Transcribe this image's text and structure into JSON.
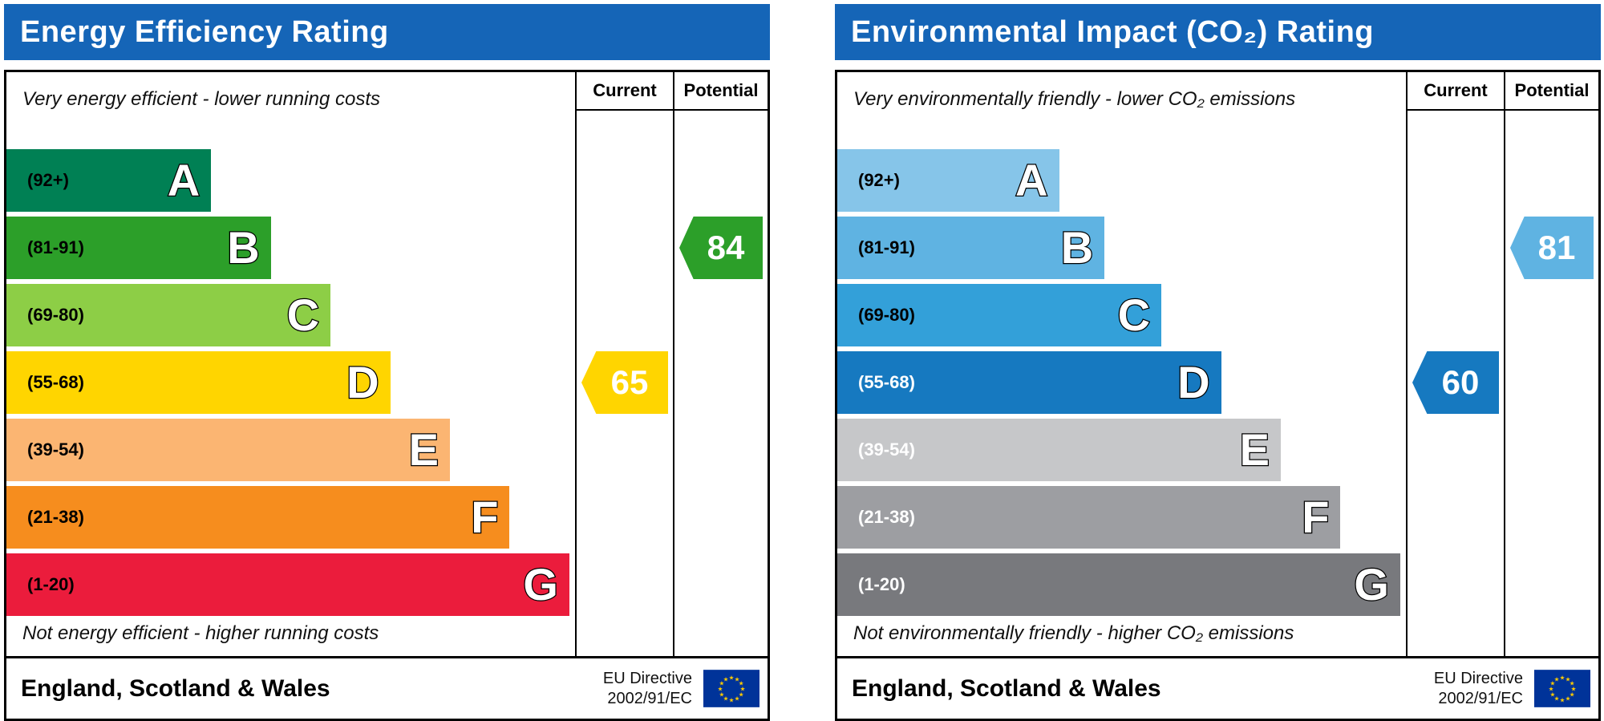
{
  "chart_data": [
    {
      "type": "bar",
      "chart_kind": "epc-rating-scale",
      "title": "Energy Efficiency Rating",
      "header_color": "#1565b7",
      "columns": {
        "current": "Current",
        "potential": "Potential"
      },
      "top_note": "Very energy efficient - lower running costs",
      "bottom_note": "Not energy efficient - higher running costs",
      "bands": [
        {
          "letter": "A",
          "range": "(92+)",
          "color": "#008054",
          "label_color": "#000000",
          "width_pct": 36
        },
        {
          "letter": "B",
          "range": "(81-91)",
          "color": "#2c9f29",
          "label_color": "#000000",
          "width_pct": 46.5
        },
        {
          "letter": "C",
          "range": "(69-80)",
          "color": "#8dce46",
          "label_color": "#000000",
          "width_pct": 57
        },
        {
          "letter": "D",
          "range": "(55-68)",
          "color": "#ffd500",
          "label_color": "#000000",
          "width_pct": 67.5
        },
        {
          "letter": "E",
          "range": "(39-54)",
          "color": "#fbb572",
          "label_color": "#000000",
          "width_pct": 78
        },
        {
          "letter": "F",
          "range": "(21-38)",
          "color": "#f68d1e",
          "label_color": "#000000",
          "width_pct": 88.5
        },
        {
          "letter": "G",
          "range": "(1-20)",
          "color": "#eb1c3c",
          "label_color": "#000000",
          "width_pct": 99
        }
      ],
      "current": {
        "value": 65,
        "band": "D",
        "band_index": 3,
        "color": "#ffd500"
      },
      "potential": {
        "value": 84,
        "band": "B",
        "band_index": 1,
        "color": "#2c9f29"
      },
      "footer_region": "England, Scotland & Wales",
      "directive": [
        "EU Directive",
        "2002/91/EC"
      ]
    },
    {
      "type": "bar",
      "chart_kind": "epc-rating-scale",
      "title": "Environmental Impact (CO₂) Rating",
      "header_color": "#1565b7",
      "columns": {
        "current": "Current",
        "potential": "Potential"
      },
      "top_note": "Very environmentally friendly - lower CO₂ emissions",
      "bottom_note": "Not environmentally friendly - higher CO₂ emissions",
      "bands": [
        {
          "letter": "A",
          "range": "(92+)",
          "color": "#86c5e9",
          "label_color": "#000000",
          "width_pct": 39
        },
        {
          "letter": "B",
          "range": "(81-91)",
          "color": "#5fb3e2",
          "label_color": "#000000",
          "width_pct": 47
        },
        {
          "letter": "C",
          "range": "(69-80)",
          "color": "#33a0d9",
          "label_color": "#000000",
          "width_pct": 57
        },
        {
          "letter": "D",
          "range": "(55-68)",
          "color": "#1679c0",
          "label_color": "#ffffff",
          "width_pct": 67.5
        },
        {
          "letter": "E",
          "range": "(39-54)",
          "color": "#c6c7c9",
          "label_color": "#ffffff",
          "width_pct": 78
        },
        {
          "letter": "F",
          "range": "(21-38)",
          "color": "#9d9ea2",
          "label_color": "#ffffff",
          "width_pct": 88.5
        },
        {
          "letter": "G",
          "range": "(1-20)",
          "color": "#78797d",
          "label_color": "#ffffff",
          "width_pct": 99
        }
      ],
      "current": {
        "value": 60,
        "band": "D",
        "band_index": 3,
        "color": "#1679c0"
      },
      "potential": {
        "value": 81,
        "band": "B",
        "band_index": 1,
        "color": "#5fb3e2"
      },
      "footer_region": "England, Scotland & Wales",
      "directive": [
        "EU Directive",
        "2002/91/EC"
      ]
    }
  ]
}
